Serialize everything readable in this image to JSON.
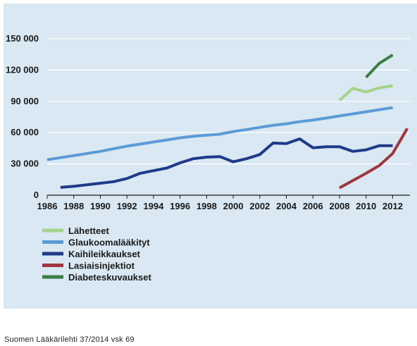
{
  "chart_data": {
    "type": "line",
    "title": "",
    "xlabel": "",
    "ylabel": "",
    "ylim": [
      0,
      150000
    ],
    "xlim": [
      1986,
      2013.3
    ],
    "y_ticks": [
      {
        "value": 0,
        "label": "0"
      },
      {
        "value": 30000,
        "label": "30 000"
      },
      {
        "value": 60000,
        "label": "60 000"
      },
      {
        "value": 90000,
        "label": "90 000"
      },
      {
        "value": 120000,
        "label": "120 000"
      },
      {
        "value": 150000,
        "label": "150 000"
      }
    ],
    "x_ticks": [
      "1986",
      "1988",
      "1990",
      "1992",
      "1994",
      "1996",
      "1998",
      "2000",
      "2002",
      "2004",
      "2006",
      "2008",
      "2010",
      "2012"
    ],
    "grid": "horizontal",
    "legend_position": "bottom-left",
    "series": [
      {
        "name": "Lähetteet",
        "color": "#a5d38a",
        "x": [
          2008,
          2009,
          2010,
          2011,
          2012
        ],
        "y": [
          91000,
          102500,
          99000,
          103000,
          105000
        ]
      },
      {
        "name": "Glaukoomalääkityt",
        "color": "#5b9bd5",
        "x": [
          1986,
          1987,
          1988,
          1989,
          1990,
          1991,
          1992,
          1993,
          1994,
          1995,
          1996,
          1997,
          1998,
          1999,
          2000,
          2001,
          2002,
          2003,
          2004,
          2005,
          2006,
          2007,
          2008,
          2009,
          2010,
          2011,
          2012
        ],
        "y": [
          34000,
          36000,
          38000,
          40000,
          42000,
          44500,
          47000,
          49000,
          51000,
          53000,
          55000,
          56500,
          57500,
          58500,
          61000,
          63000,
          65000,
          67000,
          68500,
          70500,
          72000,
          74000,
          76000,
          78000,
          80000,
          82000,
          84000
        ]
      },
      {
        "name": "Kaihileikkaukset",
        "color": "#1f3a8a",
        "x": [
          1987,
          1988,
          1989,
          1990,
          1991,
          1992,
          1993,
          1994,
          1995,
          1996,
          1997,
          1998,
          1999,
          2000,
          2001,
          2002,
          2003,
          2004,
          2005,
          2006,
          2007,
          2008,
          2009,
          2010,
          2011,
          2012
        ],
        "y": [
          7500,
          8500,
          10000,
          11500,
          13000,
          16000,
          21000,
          23500,
          26000,
          31000,
          35000,
          36500,
          37000,
          32000,
          35000,
          39000,
          50000,
          49500,
          54000,
          45500,
          46500,
          46500,
          42000,
          43500,
          47500,
          47500
        ]
      },
      {
        "name": "Lasiaisinjektiot",
        "color": "#a0353d",
        "x": [
          2008,
          2009,
          2010,
          2011,
          2012,
          2013.1
        ],
        "y": [
          7000,
          14000,
          21000,
          28500,
          40000,
          64000
        ]
      },
      {
        "name": "Diabeteskuvaukset",
        "color": "#3c7d46",
        "x": [
          2010,
          2011,
          2012
        ],
        "y": [
          113000,
          126500,
          134500
        ]
      }
    ]
  },
  "footer": {
    "caption": "Suomen Lääkärilehti 37/2014 vsk 69"
  }
}
